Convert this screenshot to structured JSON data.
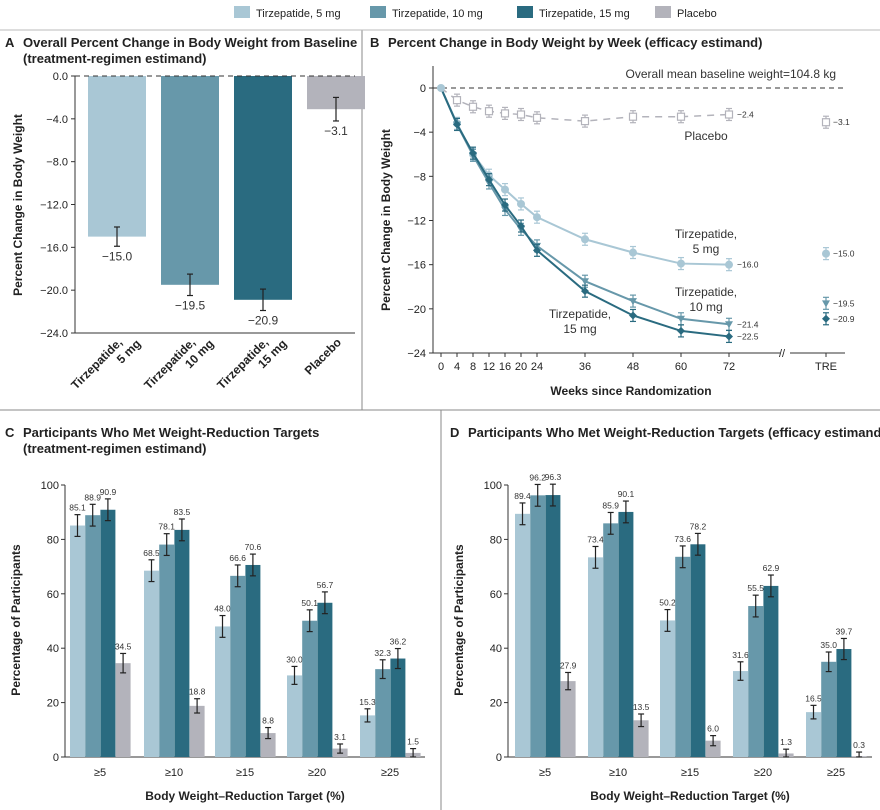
{
  "legend": [
    {
      "name": "Tirzepatide, 5 mg",
      "color": "#a9c7d5"
    },
    {
      "name": "Tirzepatide, 10 mg",
      "color": "#6798aa"
    },
    {
      "name": "Tirzepatide, 15 mg",
      "color": "#2a6b80"
    },
    {
      "name": "Placebo",
      "color": "#b3b3bb"
    }
  ],
  "chart_data": [
    {
      "type": "bar",
      "panel": "A",
      "title": "Overall Percent Change in Body Weight from Baseline",
      "subtitle": "(treatment-regimen estimand)",
      "categories": [
        "Tirzepatide, 5 mg",
        "Tirzepatide, 10 mg",
        "Tirzepatide, 15 mg",
        "Placebo"
      ],
      "values": [
        -15.0,
        -19.5,
        -20.9,
        -3.1
      ],
      "labels": [
        "−15.0",
        "−19.5",
        "−20.9",
        "−3.1"
      ],
      "error_half": [
        0.9,
        1.0,
        1.0,
        1.1
      ],
      "ylabel": "Percent Change in Body Weight",
      "ylim": [
        -24,
        0
      ],
      "yticks": [
        "0.0",
        "-4.0",
        "-8.0",
        "-12.0",
        "-16.0",
        "-20.0",
        "-24.0"
      ]
    },
    {
      "type": "line",
      "panel": "B",
      "title": "Percent Change in Body Weight by Week (efficacy estimand)",
      "xlabel": "Weeks since Randomization",
      "ylabel": "Percent Change in Body Weight",
      "ylim": [
        -24,
        0
      ],
      "yticks": [
        "0",
        "-4",
        "-8",
        "-12",
        "-16",
        "-20",
        "-24"
      ],
      "x": [
        0,
        4,
        8,
        12,
        16,
        20,
        24,
        36,
        48,
        60,
        72
      ],
      "xticks": [
        "0",
        "4",
        "8",
        "12",
        "16",
        "20",
        "24",
        "36",
        "48",
        "60",
        "72",
        "TRE"
      ],
      "annotation": "Overall mean baseline weight=104.8 kg",
      "series": [
        {
          "name": "Placebo",
          "label": "Placebo",
          "values": [
            0,
            -1.1,
            -1.7,
            -2.1,
            -2.3,
            -2.4,
            -2.7,
            -3.0,
            -2.6,
            -2.6,
            -2.4
          ],
          "end_label": "−2.4",
          "tre": -3.1,
          "tre_label": "−3.1"
        },
        {
          "name": "Tirzepatide, 5 mg",
          "label": [
            "Tirzepatide,",
            "5 mg"
          ],
          "values": [
            0,
            -3.2,
            -6.0,
            -7.9,
            -9.2,
            -10.5,
            -11.7,
            -13.7,
            -14.9,
            -15.9,
            -16.0
          ],
          "end_label": "−16.0",
          "tre": -15.0,
          "tre_label": "−15.0"
        },
        {
          "name": "Tirzepatide, 10 mg",
          "label": [
            "Tirzepatide,",
            "10 mg"
          ],
          "values": [
            0,
            -3.3,
            -6.1,
            -8.6,
            -11.0,
            -12.8,
            -14.3,
            -17.5,
            -19.3,
            -20.9,
            -21.4
          ],
          "end_label": "−21.4",
          "tre": -19.5,
          "tre_label": "−19.5"
        },
        {
          "name": "Tirzepatide, 15 mg",
          "label": [
            "Tirzepatide,",
            "15 mg"
          ],
          "values": [
            0,
            -3.3,
            -5.9,
            -8.3,
            -10.6,
            -12.5,
            -14.7,
            -18.4,
            -20.6,
            -22.0,
            -22.5
          ],
          "end_label": "−22.5",
          "tre": -20.9,
          "tre_label": "−20.9"
        }
      ]
    },
    {
      "type": "bar",
      "panel": "C",
      "title": "Participants Who Met Weight-Reduction Targets",
      "subtitle": "(treatment-regimen estimand)",
      "categories": [
        "≥5",
        "≥10",
        "≥15",
        "≥20",
        "≥25"
      ],
      "xlabel": "Body Weight–Reduction Target (%)",
      "ylabel": "Percentage of Participants",
      "ylim": [
        0,
        100
      ],
      "yticks": [
        "0",
        "20",
        "40",
        "60",
        "80",
        "100"
      ],
      "series": [
        {
          "name": "Tirzepatide, 5 mg",
          "values": [
            85.1,
            68.5,
            48.0,
            30.0,
            15.3
          ]
        },
        {
          "name": "Tirzepatide, 10 mg",
          "values": [
            88.9,
            78.1,
            66.6,
            50.1,
            32.3
          ]
        },
        {
          "name": "Tirzepatide, 15 mg",
          "values": [
            90.9,
            83.5,
            70.6,
            56.7,
            36.2
          ]
        },
        {
          "name": "Placebo",
          "values": [
            34.5,
            18.8,
            8.8,
            3.1,
            1.5
          ]
        }
      ]
    },
    {
      "type": "bar",
      "panel": "D",
      "title": "Participants Who Met Weight-Reduction Targets (efficacy estimand)",
      "categories": [
        "≥5",
        "≥10",
        "≥15",
        "≥20",
        "≥25"
      ],
      "xlabel": "Body Weight–Reduction Target (%)",
      "ylabel": "Percentage of Participants",
      "ylim": [
        0,
        100
      ],
      "yticks": [
        "0",
        "20",
        "40",
        "60",
        "80",
        "100"
      ],
      "series": [
        {
          "name": "Tirzepatide, 5 mg",
          "values": [
            89.4,
            73.4,
            50.2,
            31.6,
            16.5
          ]
        },
        {
          "name": "Tirzepatide, 10 mg",
          "values": [
            96.2,
            85.9,
            73.6,
            55.5,
            35.0
          ]
        },
        {
          "name": "Tirzepatide, 15 mg",
          "values": [
            96.3,
            90.1,
            78.2,
            62.9,
            39.7
          ]
        },
        {
          "name": "Placebo",
          "values": [
            27.9,
            13.5,
            6.0,
            1.3,
            0.3
          ]
        }
      ]
    }
  ]
}
